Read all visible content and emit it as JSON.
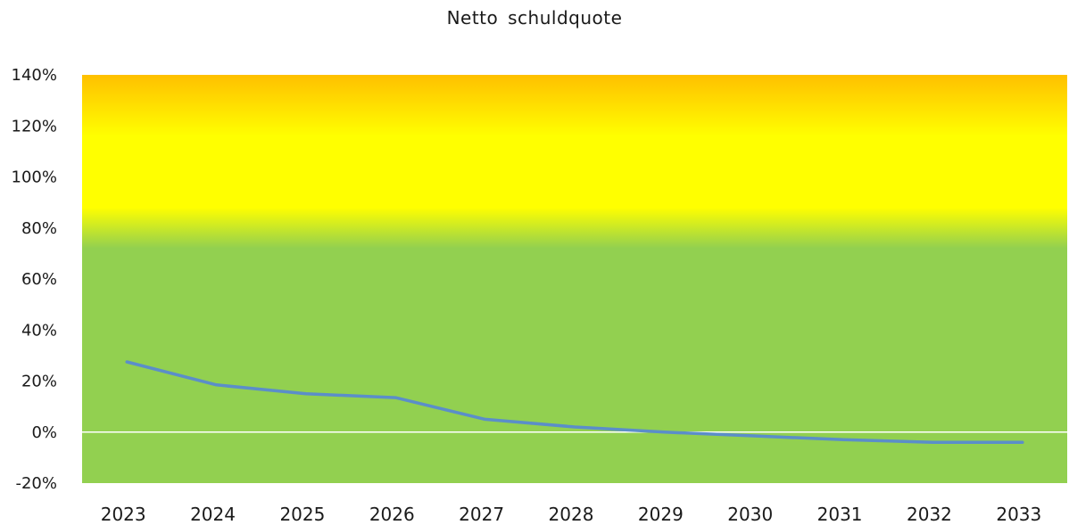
{
  "chart_data": {
    "type": "line",
    "title": "Netto schuldquote",
    "xlabel": "",
    "ylabel": "",
    "categories": [
      "2023",
      "2024",
      "2025",
      "2026",
      "2027",
      "2028",
      "2029",
      "2030",
      "2031",
      "2032",
      "2033"
    ],
    "series": [
      {
        "values": [
          27.5,
          18.5,
          15,
          13.5,
          5,
          2,
          0,
          -1.5,
          -3,
          -4,
          -4
        ],
        "color": "#5b8ec9"
      }
    ],
    "ylim": [
      -20,
      140
    ],
    "yticks": [
      -20,
      0,
      20,
      40,
      60,
      80,
      100,
      120,
      140
    ],
    "ytick_labels": [
      "-20%",
      "0%",
      "20%",
      "40%",
      "60%",
      "80%",
      "100%",
      "120%",
      "140%"
    ],
    "grid": false,
    "zero_line": true,
    "background_bands": [
      {
        "from": -20,
        "to": 72,
        "color": "#92d050"
      },
      {
        "from": 72,
        "to": 88,
        "color_from": "#92d050",
        "color_to": "#ffff00"
      },
      {
        "from": 88,
        "to": 116,
        "color": "#ffff00"
      },
      {
        "from": 116,
        "to": 140,
        "color_from": "#ffff00",
        "color_to": "#ffc000"
      }
    ]
  }
}
